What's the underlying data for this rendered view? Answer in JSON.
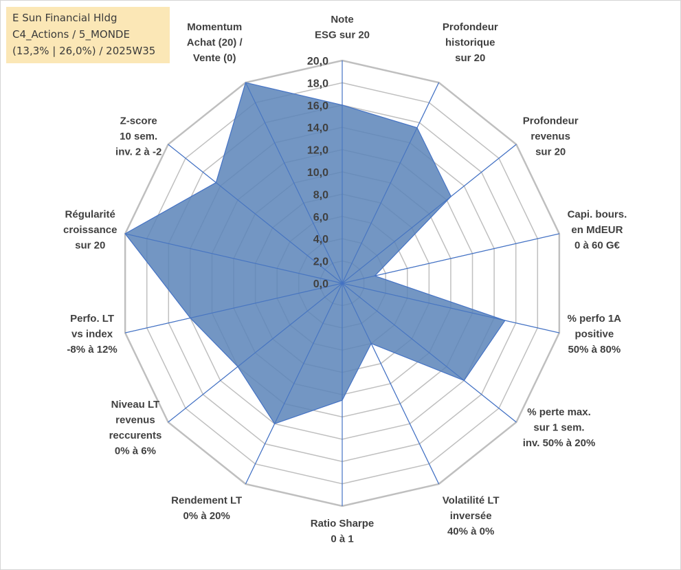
{
  "title_box": {
    "line1": "E Sun Financial Hldg",
    "line2": "C4_Actions / 5_MONDE",
    "line3": "(13,3% | 26,0%) / 2025W35",
    "background": "#fbe7b6"
  },
  "chart_data": {
    "type": "radar",
    "title": "",
    "range": [
      0,
      20
    ],
    "tick_step": 2,
    "tick_labels": [
      "0,0",
      "2,0",
      "4,0",
      "6,0",
      "8,0",
      "10,0",
      "12,0",
      "14,0",
      "16,0",
      "18,0",
      "20,0"
    ],
    "grid": true,
    "grid_color": "#bfbfbf",
    "axis_color": "#4472c4",
    "fill_color": "#5b84b8",
    "line_color": "#4472c4",
    "axes": [
      {
        "label": [
          "Note",
          "ESG sur 20"
        ],
        "value": 16.0
      },
      {
        "label": [
          "Profondeur",
          "historique",
          "sur 20"
        ],
        "value": 15.5
      },
      {
        "label": [
          "Profondeur",
          "revenus",
          "sur 20"
        ],
        "value": 12.5
      },
      {
        "label": [
          "Capi. bours.",
          "en MdEUR",
          "0 à 60 G€"
        ],
        "value": 3.0
      },
      {
        "label": [
          "% perfo 1A",
          "positive",
          "50% à 80%"
        ],
        "value": 15.0
      },
      {
        "label": [
          "% perte max.",
          "sur 1 sem.",
          "inv. 50% à 20%"
        ],
        "value": 14.0
      },
      {
        "label": [
          "Volatilité LT",
          "inversée",
          "40% à 0%"
        ],
        "value": 6.0
      },
      {
        "label": [
          "Ratio Sharpe",
          "0 à 1"
        ],
        "value": 10.5
      },
      {
        "label": [
          "Rendement LT",
          "0% à 20%"
        ],
        "value": 14.0
      },
      {
        "label": [
          "Niveau LT",
          "revenus",
          "reccurents",
          "0% à 6%"
        ],
        "value": 12.0
      },
      {
        "label": [
          "Perfo. LT",
          "vs index",
          "-8% à 12%"
        ],
        "value": 14.0
      },
      {
        "label": [
          "Régularité",
          "croissance",
          "sur 20"
        ],
        "value": 20.0
      },
      {
        "label": [
          "Z-score",
          "10 sem.",
          "inv. 2 à -2"
        ],
        "value": 14.5
      },
      {
        "label": [
          "Momentum",
          "Achat (20) /",
          "Vente (0)"
        ],
        "value": 20.0
      }
    ]
  }
}
